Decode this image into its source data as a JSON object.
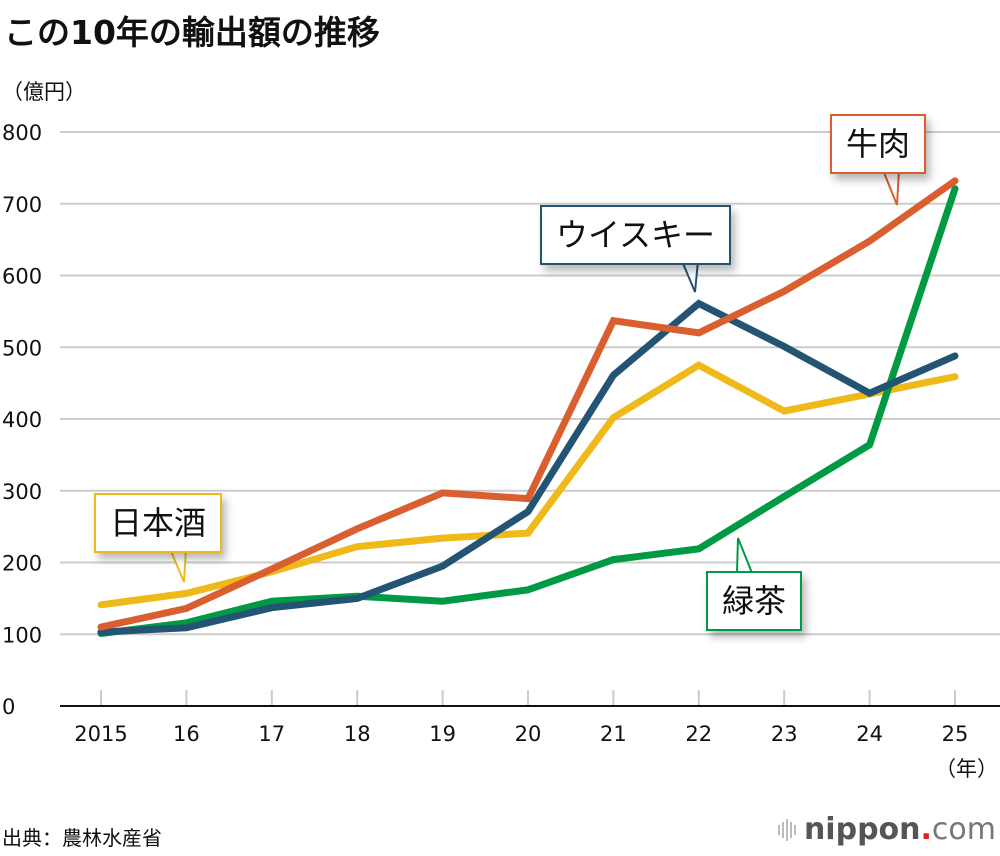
{
  "title": "この10年の輸出額の推移",
  "unit_label": "（億円）",
  "source": "出典：農林水産省",
  "logo": {
    "name": "nippon",
    "dot": ".",
    "suffix": "com",
    "icon": "sound-bars-icon"
  },
  "chart_data": {
    "type": "line",
    "title": "この10年の輸出額の推移",
    "xlabel": "（年）",
    "ylabel": "（億円）",
    "x": [
      "2015",
      "16",
      "17",
      "18",
      "19",
      "20",
      "21",
      "22",
      "23",
      "24",
      "25"
    ],
    "yticks": [
      0,
      100,
      200,
      300,
      400,
      500,
      600,
      700,
      800
    ],
    "ylim": [
      0,
      800
    ],
    "grid": true,
    "series": [
      {
        "name": "日本酒",
        "color": "#f0b91a",
        "values": [
          141,
          157,
          187,
          222,
          234,
          241,
          402,
          475,
          411,
          435,
          459
        ]
      },
      {
        "name": "緑茶",
        "color": "#009a44",
        "values": [
          101,
          116,
          146,
          153,
          146,
          162,
          204,
          219,
          292,
          364,
          721
        ]
      },
      {
        "name": "ウイスキー",
        "color": "#235474",
        "values": [
          103,
          109,
          137,
          150,
          195,
          271,
          461,
          561,
          501,
          436,
          488
        ]
      },
      {
        "name": "牛肉",
        "color": "#d95f30",
        "values": [
          110,
          136,
          191,
          247,
          297,
          289,
          537,
          520,
          578,
          648,
          732
        ]
      }
    ],
    "annotations": [
      {
        "text": "日本酒",
        "series": "日本酒",
        "color": "#f0b91a"
      },
      {
        "text": "ウイスキー",
        "series": "ウイスキー",
        "color": "#235474"
      },
      {
        "text": "牛肉",
        "series": "牛肉",
        "color": "#d95f30"
      },
      {
        "text": "緑茶",
        "series": "緑茶",
        "color": "#009a44"
      }
    ]
  }
}
